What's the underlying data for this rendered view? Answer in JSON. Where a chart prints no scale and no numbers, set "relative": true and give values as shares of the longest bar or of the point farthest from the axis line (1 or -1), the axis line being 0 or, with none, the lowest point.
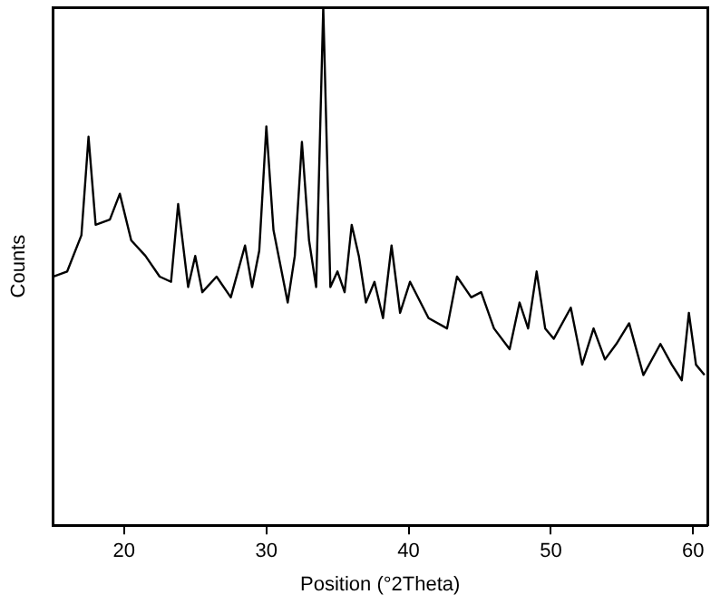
{
  "chart_data": {
    "type": "line",
    "xlabel": "Position (°2Theta)",
    "ylabel": "Counts",
    "relative": true,
    "tick_labels": "x",
    "grid": false,
    "legend": false,
    "marker": "none",
    "line_style": "solid",
    "xlim": [
      15,
      61
    ],
    "xticks": [
      20,
      30,
      40,
      50,
      60
    ],
    "series": [
      {
        "color": "#000000",
        "x": [
          15,
          16,
          17,
          17.5,
          18,
          19,
          19.7,
          20.5,
          21.5,
          22.5,
          23.3,
          23.8,
          24.5,
          25,
          25.5,
          26.5,
          27.5,
          28.5,
          29,
          29.5,
          30,
          30.5,
          31,
          31.5,
          32,
          32.5,
          33,
          33.5,
          34,
          34.5,
          35,
          35.5,
          36,
          36.5,
          37,
          37.6,
          38.2,
          38.8,
          39.4,
          40.1,
          41.4,
          42.7,
          43.4,
          44.4,
          45.1,
          46,
          47.1,
          47.8,
          48.4,
          49,
          49.6,
          50.2,
          51.4,
          52.2,
          53,
          53.8,
          54.6,
          55.5,
          56.5,
          57.7,
          58.5,
          59.2,
          59.7,
          60.2,
          60.8
        ],
        "values": [
          0.48,
          0.49,
          0.56,
          0.75,
          0.58,
          0.59,
          0.64,
          0.55,
          0.52,
          0.48,
          0.47,
          0.62,
          0.46,
          0.52,
          0.45,
          0.48,
          0.44,
          0.54,
          0.46,
          0.53,
          0.77,
          0.57,
          0.5,
          0.43,
          0.52,
          0.74,
          0.55,
          0.46,
          1,
          0.46,
          0.49,
          0.45,
          0.58,
          0.52,
          0.43,
          0.47,
          0.4,
          0.54,
          0.41,
          0.47,
          0.4,
          0.38,
          0.48,
          0.44,
          0.45,
          0.38,
          0.34,
          0.43,
          0.38,
          0.49,
          0.38,
          0.36,
          0.42,
          0.31,
          0.38,
          0.32,
          0.35,
          0.39,
          0.29,
          0.35,
          0.31,
          0.28,
          0.41,
          0.31,
          0.29
        ]
      }
    ]
  }
}
